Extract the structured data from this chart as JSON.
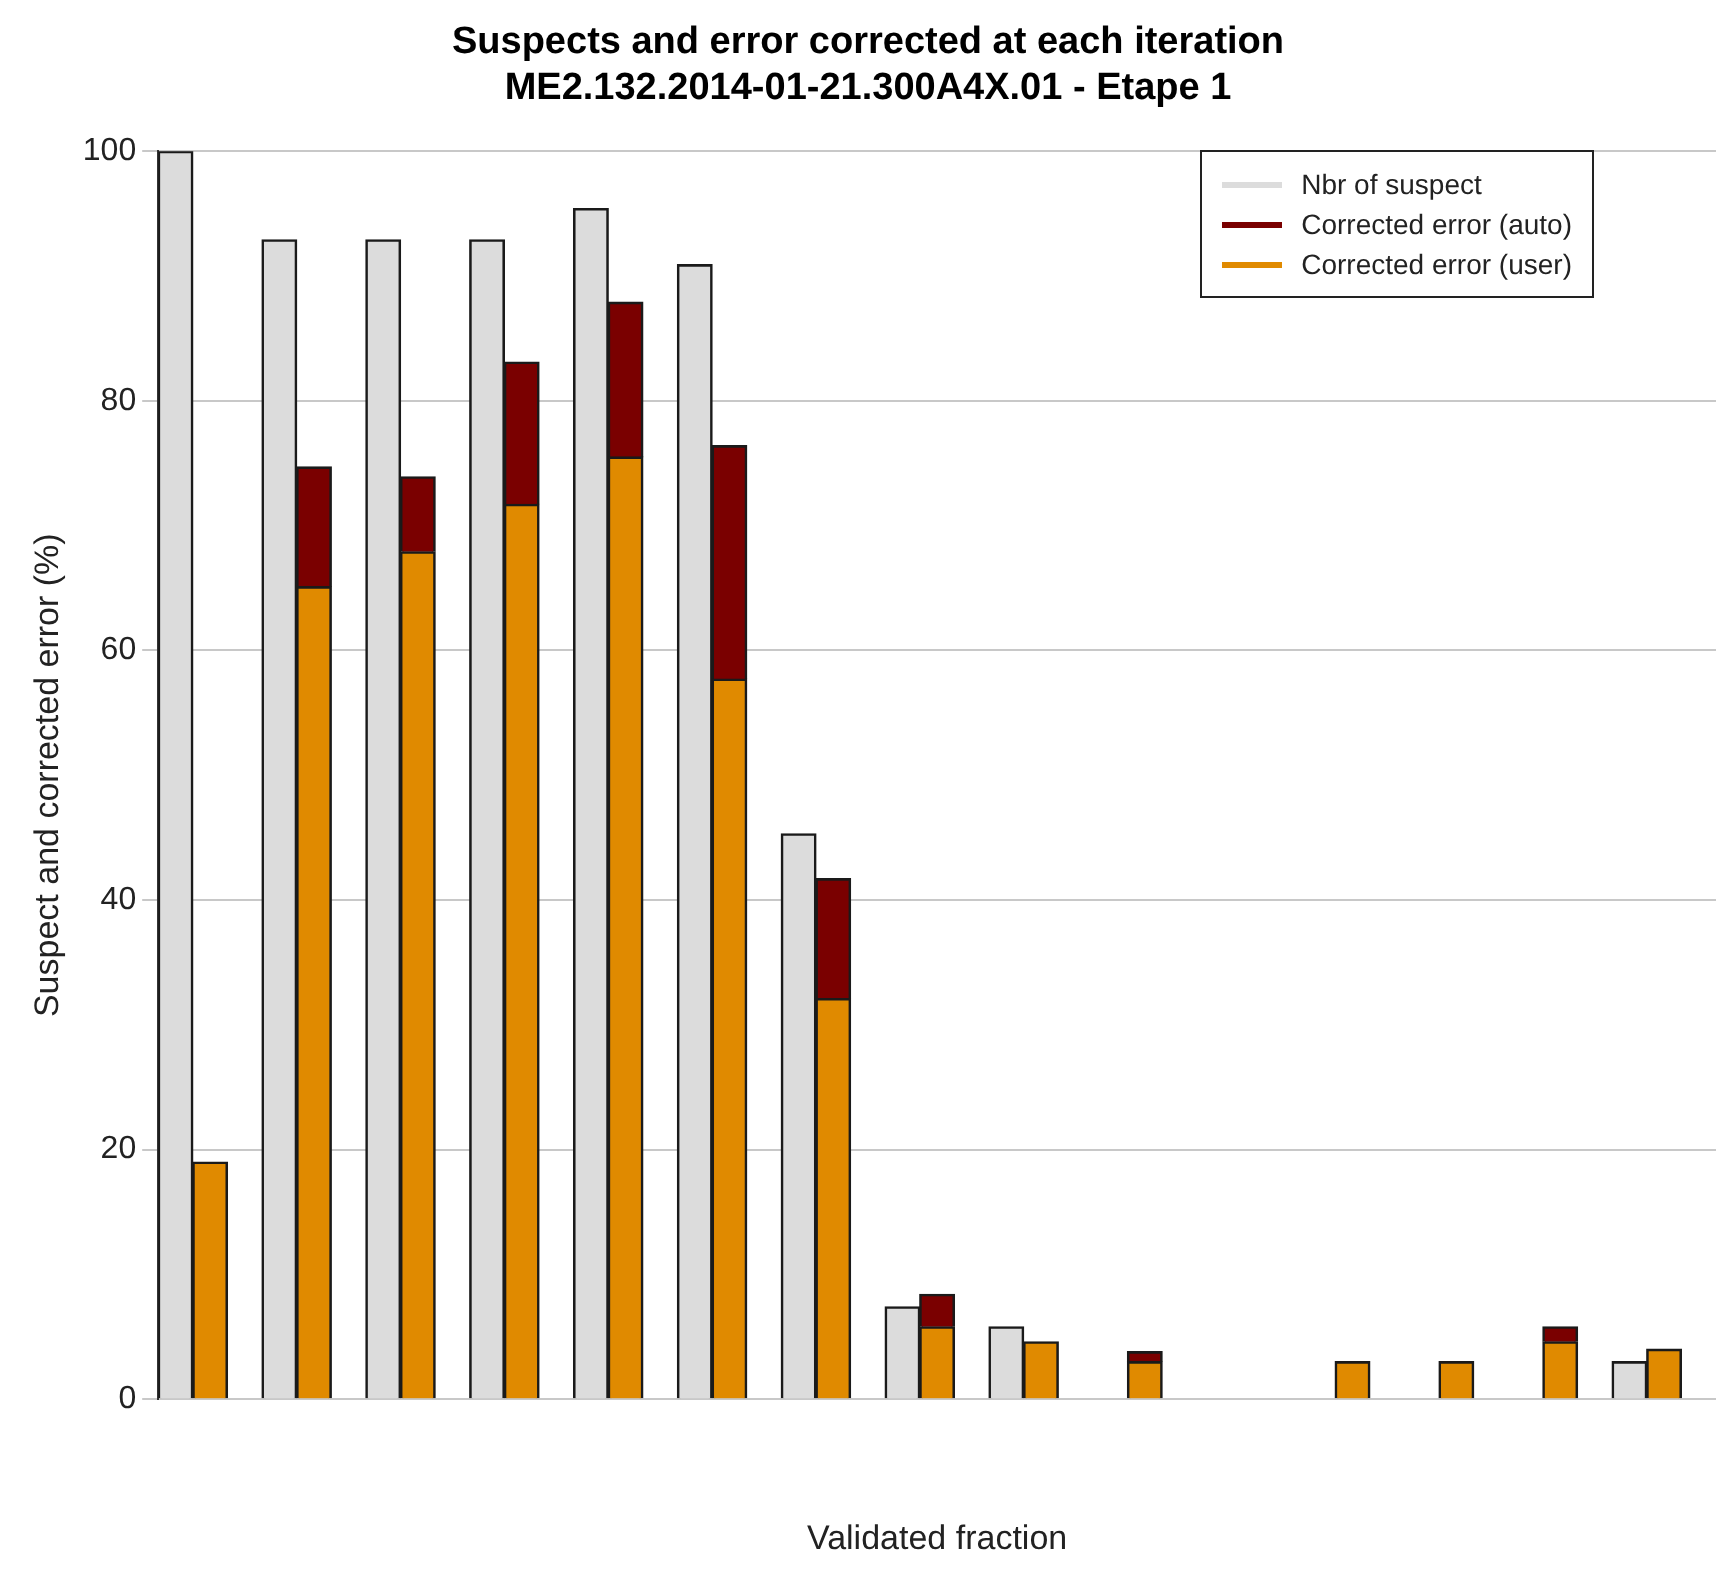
{
  "chart_data": {
    "type": "bar",
    "title": "Suspects and error corrected at each iteration",
    "subtitle": "ME2.132.2014-01-21.300A4X.01 - Etape 1",
    "xlabel": "Validated fraction",
    "ylabel": "Suspect and corrected error (%)",
    "categories": [
      null,
      null,
      null,
      null,
      null,
      null,
      null,
      null,
      null,
      null,
      null,
      null,
      null,
      null,
      null,
      null,
      null,
      null,
      null,
      null,
      null,
      null,
      null,
      null,
      null,
      null,
      null,
      null,
      null,
      null,
      null,
      null,
      null,
      null,
      null,
      null,
      null,
      null,
      null,
      null,
      null,
      null,
      null,
      null,
      null
    ],
    "stacked": true,
    "series": [
      {
        "name": "Nbr of suspect",
        "color": "#dcdcdc",
        "values": [
          100,
          null,
          null,
          92.9,
          null,
          null,
          92.9,
          null,
          null,
          92.9,
          null,
          null,
          95.4,
          null,
          null,
          90.9,
          null,
          null,
          45.3,
          null,
          null,
          7.4,
          null,
          null,
          5.8,
          null,
          null,
          0,
          null,
          null,
          0,
          null,
          null,
          0,
          null,
          null,
          0,
          null,
          null,
          0,
          null,
          null,
          3.0,
          null,
          null
        ]
      },
      {
        "name": "Corrected error (user)",
        "color": "#e08a00",
        "values": [
          null,
          19.0,
          null,
          null,
          65.1,
          null,
          null,
          67.9,
          null,
          null,
          71.7,
          null,
          null,
          75.5,
          null,
          null,
          57.7,
          null,
          null,
          32.1,
          null,
          null,
          5.8,
          null,
          null,
          4.6,
          null,
          null,
          3.0,
          null,
          null,
          0,
          null,
          null,
          3.0,
          null,
          null,
          3.0,
          null,
          null,
          4.6,
          null,
          null,
          4.0,
          null
        ]
      },
      {
        "name": "Corrected error (auto)",
        "color": "#7a0000",
        "values": [
          null,
          0,
          null,
          null,
          9.6,
          null,
          null,
          6.0,
          null,
          null,
          11.4,
          null,
          null,
          12.4,
          null,
          null,
          18.7,
          null,
          null,
          9.6,
          null,
          null,
          2.6,
          null,
          null,
          0,
          null,
          null,
          0.8,
          null,
          null,
          0,
          null,
          null,
          0,
          null,
          null,
          0,
          null,
          null,
          1.2,
          null,
          null,
          0,
          null
        ]
      }
    ],
    "ylim": [
      0,
      100
    ],
    "yticks": [
      0,
      20,
      40,
      60,
      80,
      100
    ],
    "grid": "y",
    "legend": "top right",
    "tick_labels": "y"
  }
}
